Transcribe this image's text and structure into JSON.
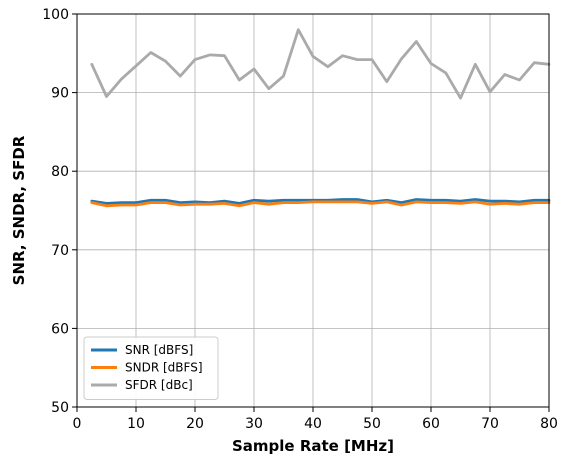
{
  "chart_data": {
    "type": "line",
    "xlabel": "Sample Rate [MHz]",
    "ylabel": "SNR, SNDR, SFDR",
    "xlim": [
      0,
      80
    ],
    "ylim": [
      50,
      100
    ],
    "xticks": [
      0,
      10,
      20,
      30,
      40,
      50,
      60,
      70,
      80
    ],
    "yticks": [
      50,
      60,
      70,
      80,
      90,
      100
    ],
    "grid": true,
    "legend_position": "lower-left",
    "x": [
      2.5,
      5,
      7.5,
      10,
      12.5,
      15,
      17.5,
      20,
      22.5,
      25,
      27.5,
      30,
      32.5,
      35,
      37.5,
      40,
      42.5,
      45,
      47.5,
      50,
      52.5,
      55,
      57.5,
      60,
      62.5,
      65,
      67.5,
      70,
      72.5,
      75,
      77.5,
      80
    ],
    "series": [
      {
        "name": "SNR [dBFS]",
        "color": "#1f77b4",
        "values": [
          76.2,
          75.9,
          76.0,
          76.0,
          76.3,
          76.3,
          76.0,
          76.1,
          76.0,
          76.2,
          75.9,
          76.3,
          76.2,
          76.3,
          76.3,
          76.3,
          76.3,
          76.4,
          76.4,
          76.1,
          76.3,
          76.0,
          76.4,
          76.3,
          76.3,
          76.2,
          76.4,
          76.2,
          76.2,
          76.1,
          76.3,
          76.3
        ]
      },
      {
        "name": "SNDR [dBFS]",
        "color": "#ff7f0e",
        "values": [
          76.0,
          75.6,
          75.7,
          75.7,
          76.0,
          76.0,
          75.7,
          75.8,
          75.8,
          75.9,
          75.6,
          76.0,
          75.8,
          76.0,
          76.0,
          76.1,
          76.1,
          76.1,
          76.1,
          75.9,
          76.1,
          75.7,
          76.1,
          76.0,
          76.0,
          75.9,
          76.1,
          75.8,
          75.9,
          75.8,
          76.0,
          76.0
        ]
      },
      {
        "name": "SFDR [dBc]",
        "color": "#aaaaaa",
        "values": [
          93.6,
          89.5,
          91.7,
          93.4,
          95.1,
          94.0,
          92.1,
          94.2,
          94.8,
          94.7,
          91.6,
          93.0,
          90.5,
          92.1,
          98.0,
          94.6,
          93.3,
          94.7,
          94.2,
          94.2,
          91.4,
          94.3,
          96.5,
          93.7,
          92.5,
          89.3,
          93.6,
          90.1,
          92.3,
          91.6,
          93.8,
          93.6
        ]
      }
    ]
  }
}
